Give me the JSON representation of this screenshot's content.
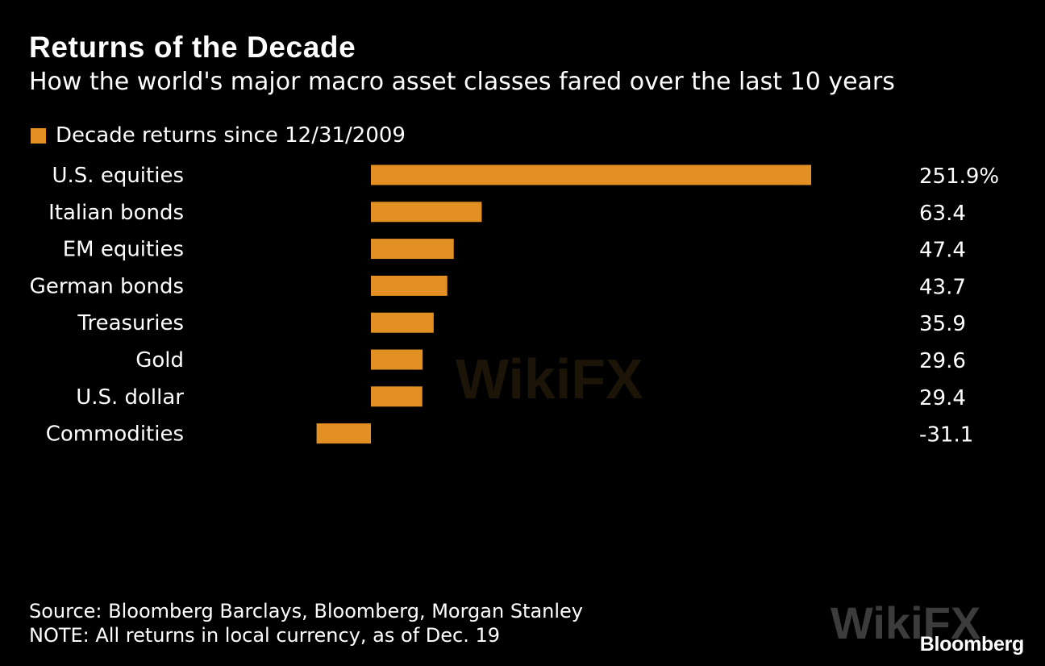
{
  "chart_data": {
    "type": "bar",
    "orientation": "horizontal",
    "title": "Returns of the Decade",
    "subtitle": "How the world's major macro asset classes fared over the last 10 years",
    "legend": [
      {
        "label": "Decade returns since 12/31/2009",
        "color": "#e28f24"
      }
    ],
    "categories": [
      "U.S. equities",
      "Italian bonds",
      "EM equities",
      "German bonds",
      "Treasuries",
      "Gold",
      "U.S. dollar",
      "Commodities"
    ],
    "values": [
      251.9,
      63.4,
      47.4,
      43.7,
      35.9,
      29.6,
      29.4,
      -31.1
    ],
    "value_labels": [
      "251.9%",
      "63.4",
      "47.4",
      "43.7",
      "35.9",
      "29.6",
      "29.4",
      "-31.1"
    ],
    "xlim": [
      -40,
      260
    ],
    "xlabel": "",
    "ylabel": "",
    "grid": false
  },
  "footer": {
    "source": "Source: Bloomberg Barclays, Bloomberg, Morgan Stanley",
    "note": "NOTE: All returns in local currency, as of Dec. 19"
  },
  "brand": "Bloomberg",
  "watermark": "WikiFX",
  "colors": {
    "background": "#000000",
    "bar": "#e28f24",
    "text": "#ffffff"
  }
}
